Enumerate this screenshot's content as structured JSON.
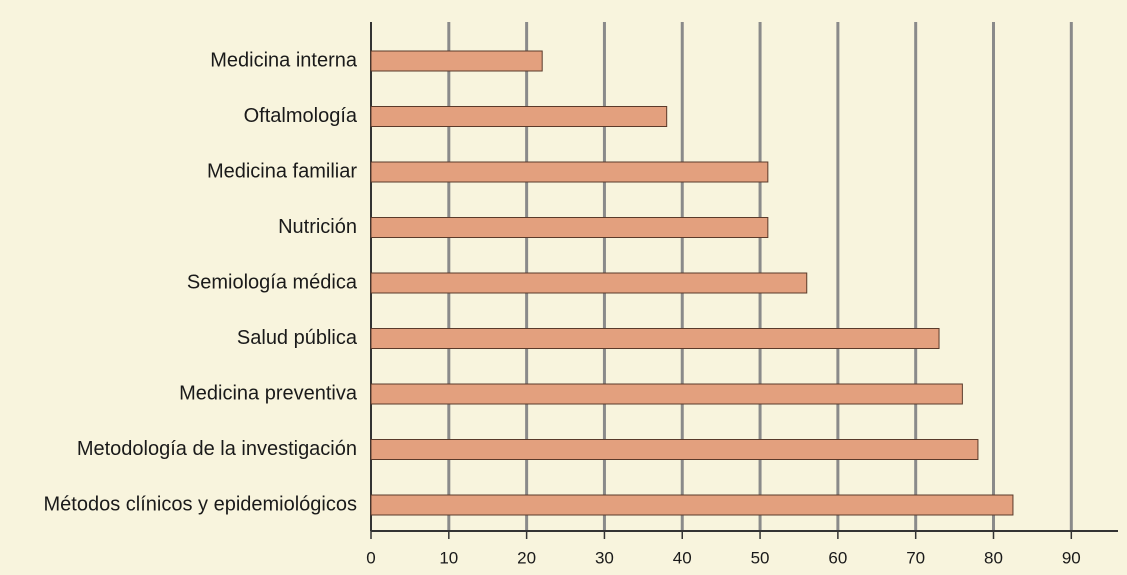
{
  "chart_data": {
    "type": "bar",
    "orientation": "horizontal",
    "categories": [
      "Medicina interna",
      "Oftalmología",
      "Medicina familiar",
      "Nutrición",
      "Semiología médica",
      "Salud pública",
      "Medicina preventiva",
      "Metodología de la investigación",
      "Métodos clínicos y epidemiológicos"
    ],
    "values": [
      22,
      38,
      51,
      51,
      56,
      73,
      76,
      78,
      82.5
    ],
    "color": "#e3a07e",
    "xlim": [
      0,
      96
    ],
    "xticks": [
      0,
      10,
      20,
      30,
      40,
      50,
      60,
      70,
      80,
      90
    ],
    "grid": true
  }
}
